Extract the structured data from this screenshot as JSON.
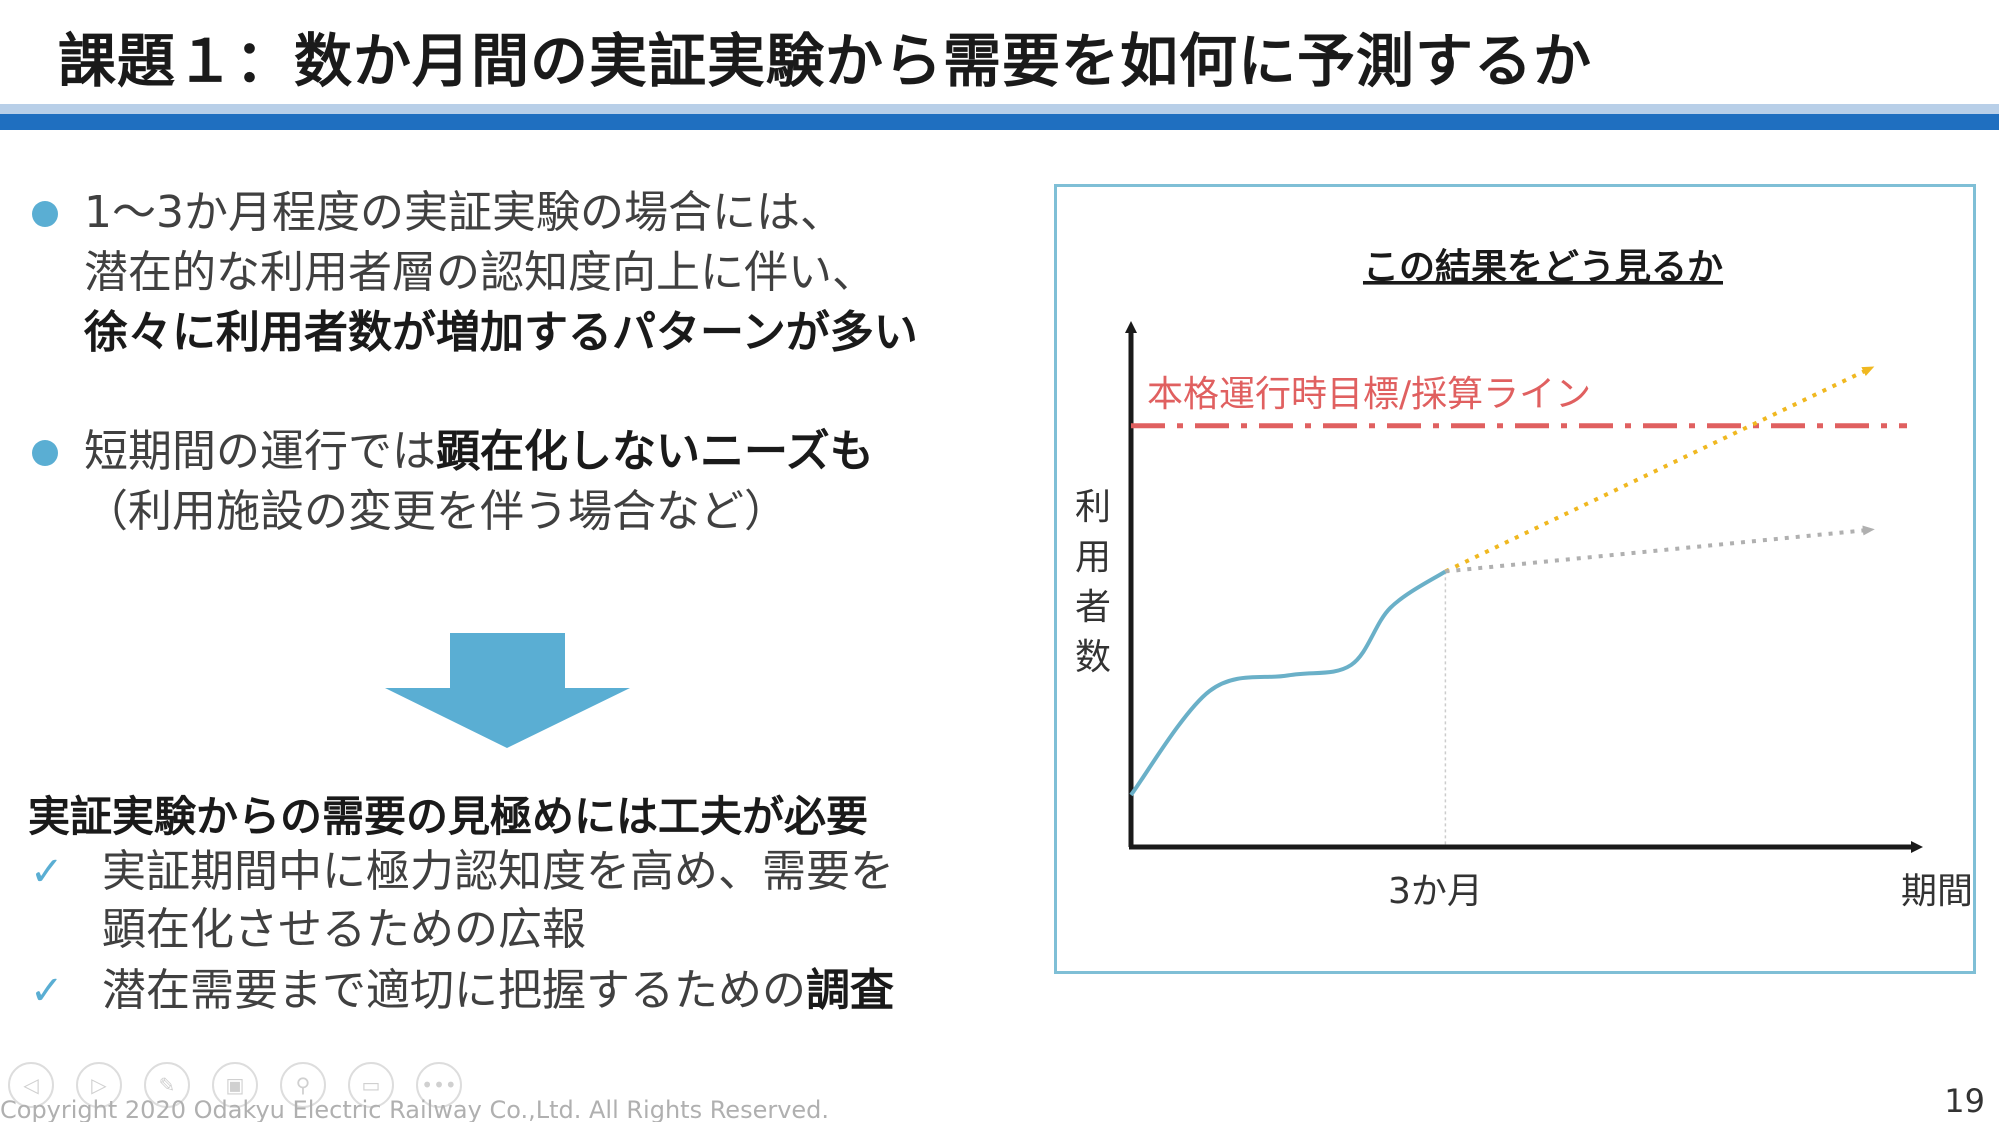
{
  "slide": {
    "title": "課題１：数か月間の実証実験から需要を如何に予測するか",
    "page_number": "19",
    "copyright": "Copyright 2020 Odakyu Electric Railway Co.,Ltd. All Rights Reserved."
  },
  "bullets": [
    {
      "line1": "1～3か月程度の実証実験の場合には、",
      "line2": "潜在的な利用者層の認知度向上に伴い、",
      "line3_bold": "徐々に利用者数が増加するパターンが多い"
    },
    {
      "line1_normal": "短期間の運行では",
      "line1_bold": "顕在化しないニーズも",
      "line2": "（利用施設の変更を伴う場合など）"
    }
  ],
  "conclusion": "実証実験からの需要の見極めには工夫が必要",
  "checks": [
    {
      "line1": "実証期間中に極力認知度を高め、需要を",
      "line2": "顕在化させるための広報"
    },
    {
      "line1_normal": "潜在需要まで適切に把握するための",
      "line1_bold": "調査"
    }
  ],
  "footer_controls": [
    "◁",
    "▷",
    "✎",
    "▣",
    "⚲",
    "▭",
    "•••"
  ],
  "colors": {
    "accent_blue": "#1f6fc0",
    "bullet_blue": "#5aaed3",
    "target_red": "#e06060",
    "projection_orange": "#f0b820",
    "projection_gray": "#b0b0b0",
    "curve_blue": "#6ab0c8"
  },
  "chart_data": {
    "type": "line",
    "title": "この結果をどう見るか",
    "ylabel": "利用者数",
    "xlabel": "期間",
    "x_tick": "3か月",
    "target_label": "本格運行時目標/採算ライン",
    "xlim": [
      0,
      10
    ],
    "ylim": [
      0,
      10
    ],
    "target_value": 8.1,
    "x_tick_value": 4,
    "series": [
      {
        "name": "actual",
        "style": "solid",
        "color": "#6ab0c8",
        "points": [
          [
            0,
            1.0
          ],
          [
            1.0,
            3.0
          ],
          [
            2.0,
            3.3
          ],
          [
            2.8,
            3.5
          ],
          [
            3.3,
            4.6
          ],
          [
            4.0,
            5.3
          ]
        ]
      },
      {
        "name": "projection-high",
        "style": "dotted",
        "color": "#f0b820",
        "points": [
          [
            4.0,
            5.3
          ],
          [
            9.4,
            9.2
          ]
        ]
      },
      {
        "name": "projection-low",
        "style": "dotted",
        "color": "#b0b0b0",
        "points": [
          [
            4.0,
            5.3
          ],
          [
            9.4,
            6.1
          ]
        ]
      }
    ]
  }
}
